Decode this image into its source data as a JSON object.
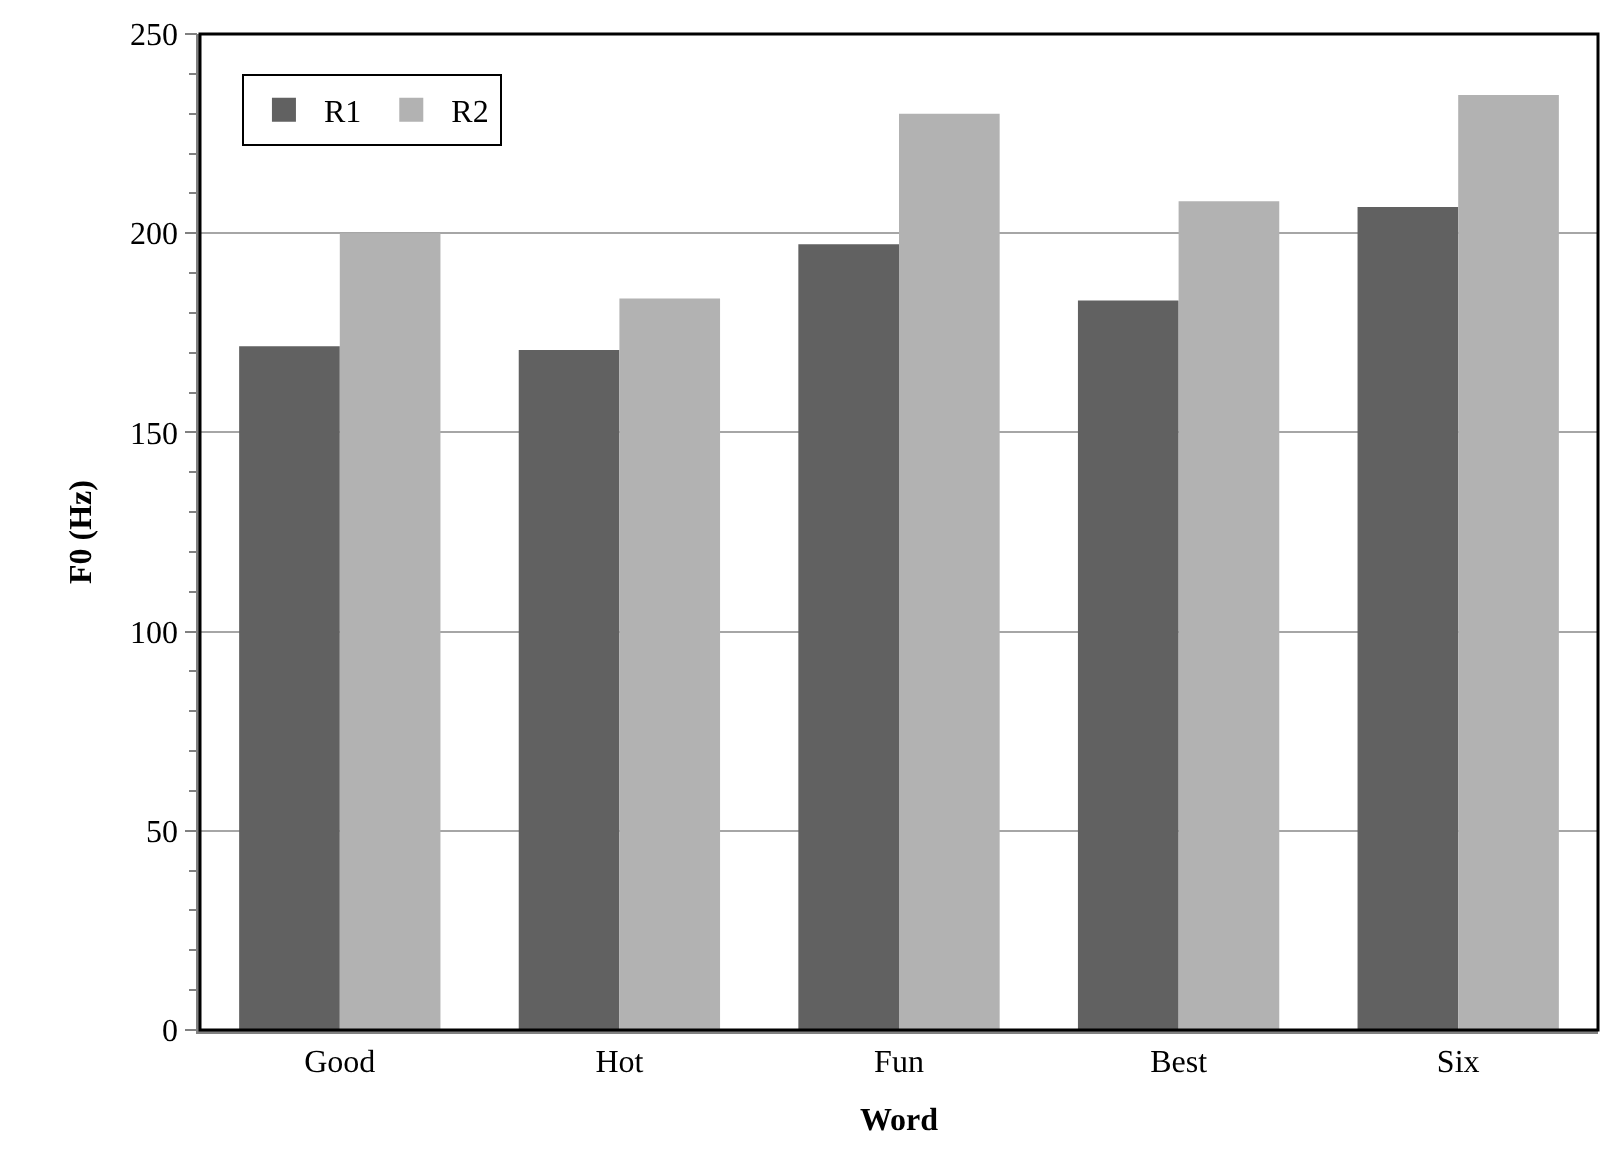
{
  "chart_data": {
    "type": "bar",
    "xlabel": "Word",
    "ylabel": "F0 (Hz)",
    "categories": [
      "Good",
      "Hot",
      "Fun",
      "Best",
      "Six"
    ],
    "series": [
      {
        "name": "R1",
        "color": "#616161",
        "values": [
          171.6,
          170.7,
          197.2,
          183.1,
          206.6
        ]
      },
      {
        "name": "R2",
        "color": "#b2b2b2",
        "values": [
          200,
          183.6,
          230,
          208,
          234.7
        ]
      }
    ],
    "ylim": [
      0,
      250
    ],
    "yticks": [
      0,
      50,
      100,
      150,
      200,
      250
    ],
    "grid": "y",
    "legend": "top left"
  }
}
